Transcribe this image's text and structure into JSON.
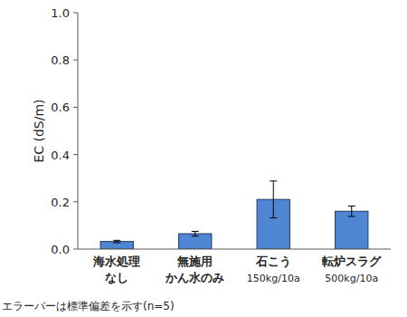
{
  "chart_data": {
    "type": "bar",
    "y_label": "EC (dS/m)",
    "categories": [
      "海水処理\nなし",
      "無施用\nかん水のみ",
      "石こう\n150kg/10a",
      "転炉スラグ\n500kg/10a"
    ],
    "values": [
      0.032,
      0.065,
      0.21,
      0.16
    ],
    "errors": [
      0.005,
      0.01,
      0.078,
      0.022
    ],
    "color": "#4f86d4",
    "ylim": [
      0,
      1.0
    ],
    "yticks": [
      {
        "value": 0,
        "label": "0.0"
      },
      0.2,
      0.4,
      0.6,
      0.8,
      {
        "value": 1.0,
        "label": "1.0"
      }
    ],
    "grid": false,
    "annotation": "エラーバーは標準偏差を示す(n=5)"
  }
}
